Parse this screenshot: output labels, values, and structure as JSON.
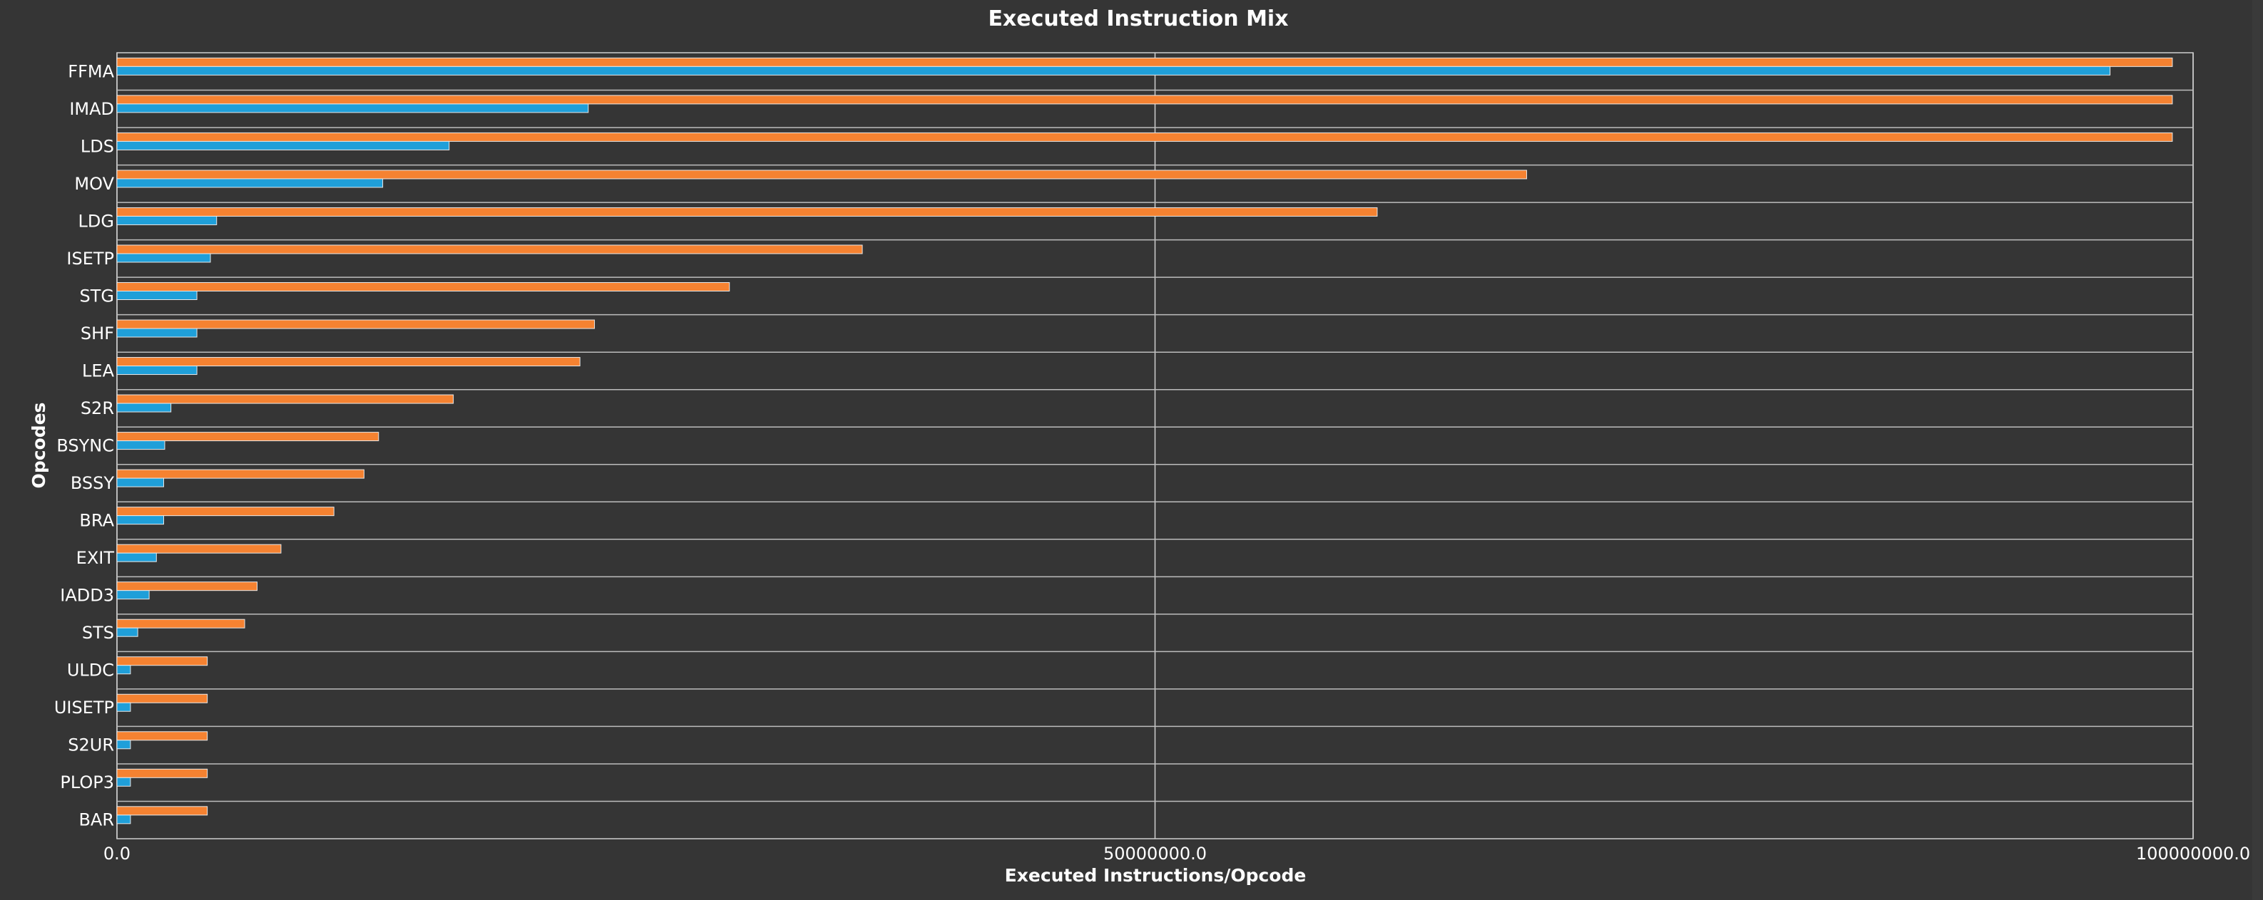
{
  "chart_data": {
    "type": "bar",
    "orientation": "horizontal",
    "title": "Executed Instruction Mix",
    "xlabel": "Executed Instructions/Opcode",
    "ylabel": "Opcodes",
    "xlim": [
      0,
      100000000
    ],
    "xticks": [
      0,
      50000000,
      100000000
    ],
    "xtick_labels": [
      "0.0",
      "50000000.0",
      "100000000.0"
    ],
    "grid": "vertical at x ticks, horizontal category separators",
    "categories": [
      "FFMA",
      "IMAD",
      "LDS",
      "MOV",
      "LDG",
      "ISETP",
      "STG",
      "SHF",
      "LEA",
      "S2R",
      "BSYNC",
      "BSSY",
      "BRA",
      "EXIT",
      "IADD3",
      "STS",
      "ULDC",
      "UISETP",
      "S2UR",
      "PLOP3",
      "BAR"
    ],
    "series": [
      {
        "color": "#f58231",
        "values": [
          99000000,
          99000000,
          99000000,
          67900000,
          60700000,
          35900000,
          29500000,
          23000000,
          22300000,
          16200000,
          12600000,
          11900000,
          10450000,
          7900000,
          6750000,
          6150000,
          4350000,
          4350000,
          4350000,
          4350000,
          4350000
        ]
      },
      {
        "color": "#1f9fd9",
        "values": [
          96000000,
          22700000,
          16000000,
          12800000,
          4800000,
          4500000,
          3850000,
          3850000,
          3850000,
          2600000,
          2300000,
          2250000,
          2250000,
          1900000,
          1550000,
          1000000,
          650000,
          650000,
          650000,
          650000,
          650000
        ]
      }
    ]
  }
}
